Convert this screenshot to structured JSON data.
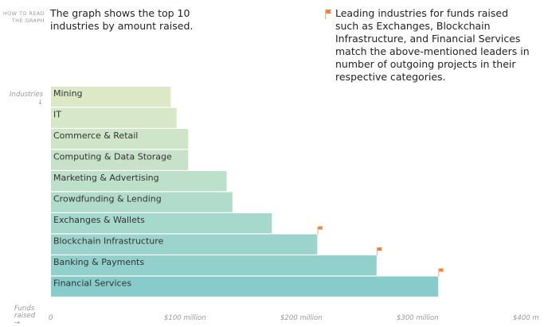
{
  "how_to_read": [
    "HOW TO READ",
    "THE GRAPH"
  ],
  "intro": "The graph shows the top 10 industries by amount raised.",
  "note": "Leading industries for funds raised such as Exchanges, Blockchain Infrastructure, and Financial Services match the above-mentioned leaders in number of outgoing projects in their respective categories.",
  "note_icon": "flag-icon",
  "flag_color": "#f07f3c",
  "chart_data": {
    "type": "bar",
    "orientation": "horizontal",
    "title": "The graph shows the top 10 industries by amount raised.",
    "ylabel": "Industries ↓",
    "xlabel": "Funds raised →",
    "categories": [
      "Mining",
      "IT",
      "Commerce & Retail",
      "Computing & Data Storage",
      "Marketing & Advertising",
      "Crowdfunding & Lending",
      "Exchanges & Wallets",
      "Blockchain Infrastructure",
      "Banking & Payments",
      "Financial Services"
    ],
    "values": [
      103,
      108,
      118,
      118,
      151,
      156,
      190,
      229,
      280,
      333
    ],
    "flagged": [
      false,
      false,
      false,
      false,
      false,
      false,
      false,
      true,
      true,
      true
    ],
    "units": "million USD",
    "xlim": [
      0,
      400
    ],
    "ticks": [
      {
        "value": 0,
        "label": "0"
      },
      {
        "value": 100,
        "label": "$100 million"
      },
      {
        "value": 200,
        "label": "$200 million"
      },
      {
        "value": 300,
        "label": "$300 million"
      },
      {
        "value": 400,
        "label": "$400 m"
      }
    ],
    "colors": [
      "#dde9c6",
      "#d6e8c7",
      "#cfe5c8",
      "#c7e2c9",
      "#bde0cb",
      "#b1dccb",
      "#a7d8cc",
      "#9cd3cc",
      "#92d0cc",
      "#87cccb"
    ],
    "grid": false,
    "legend": "none"
  }
}
